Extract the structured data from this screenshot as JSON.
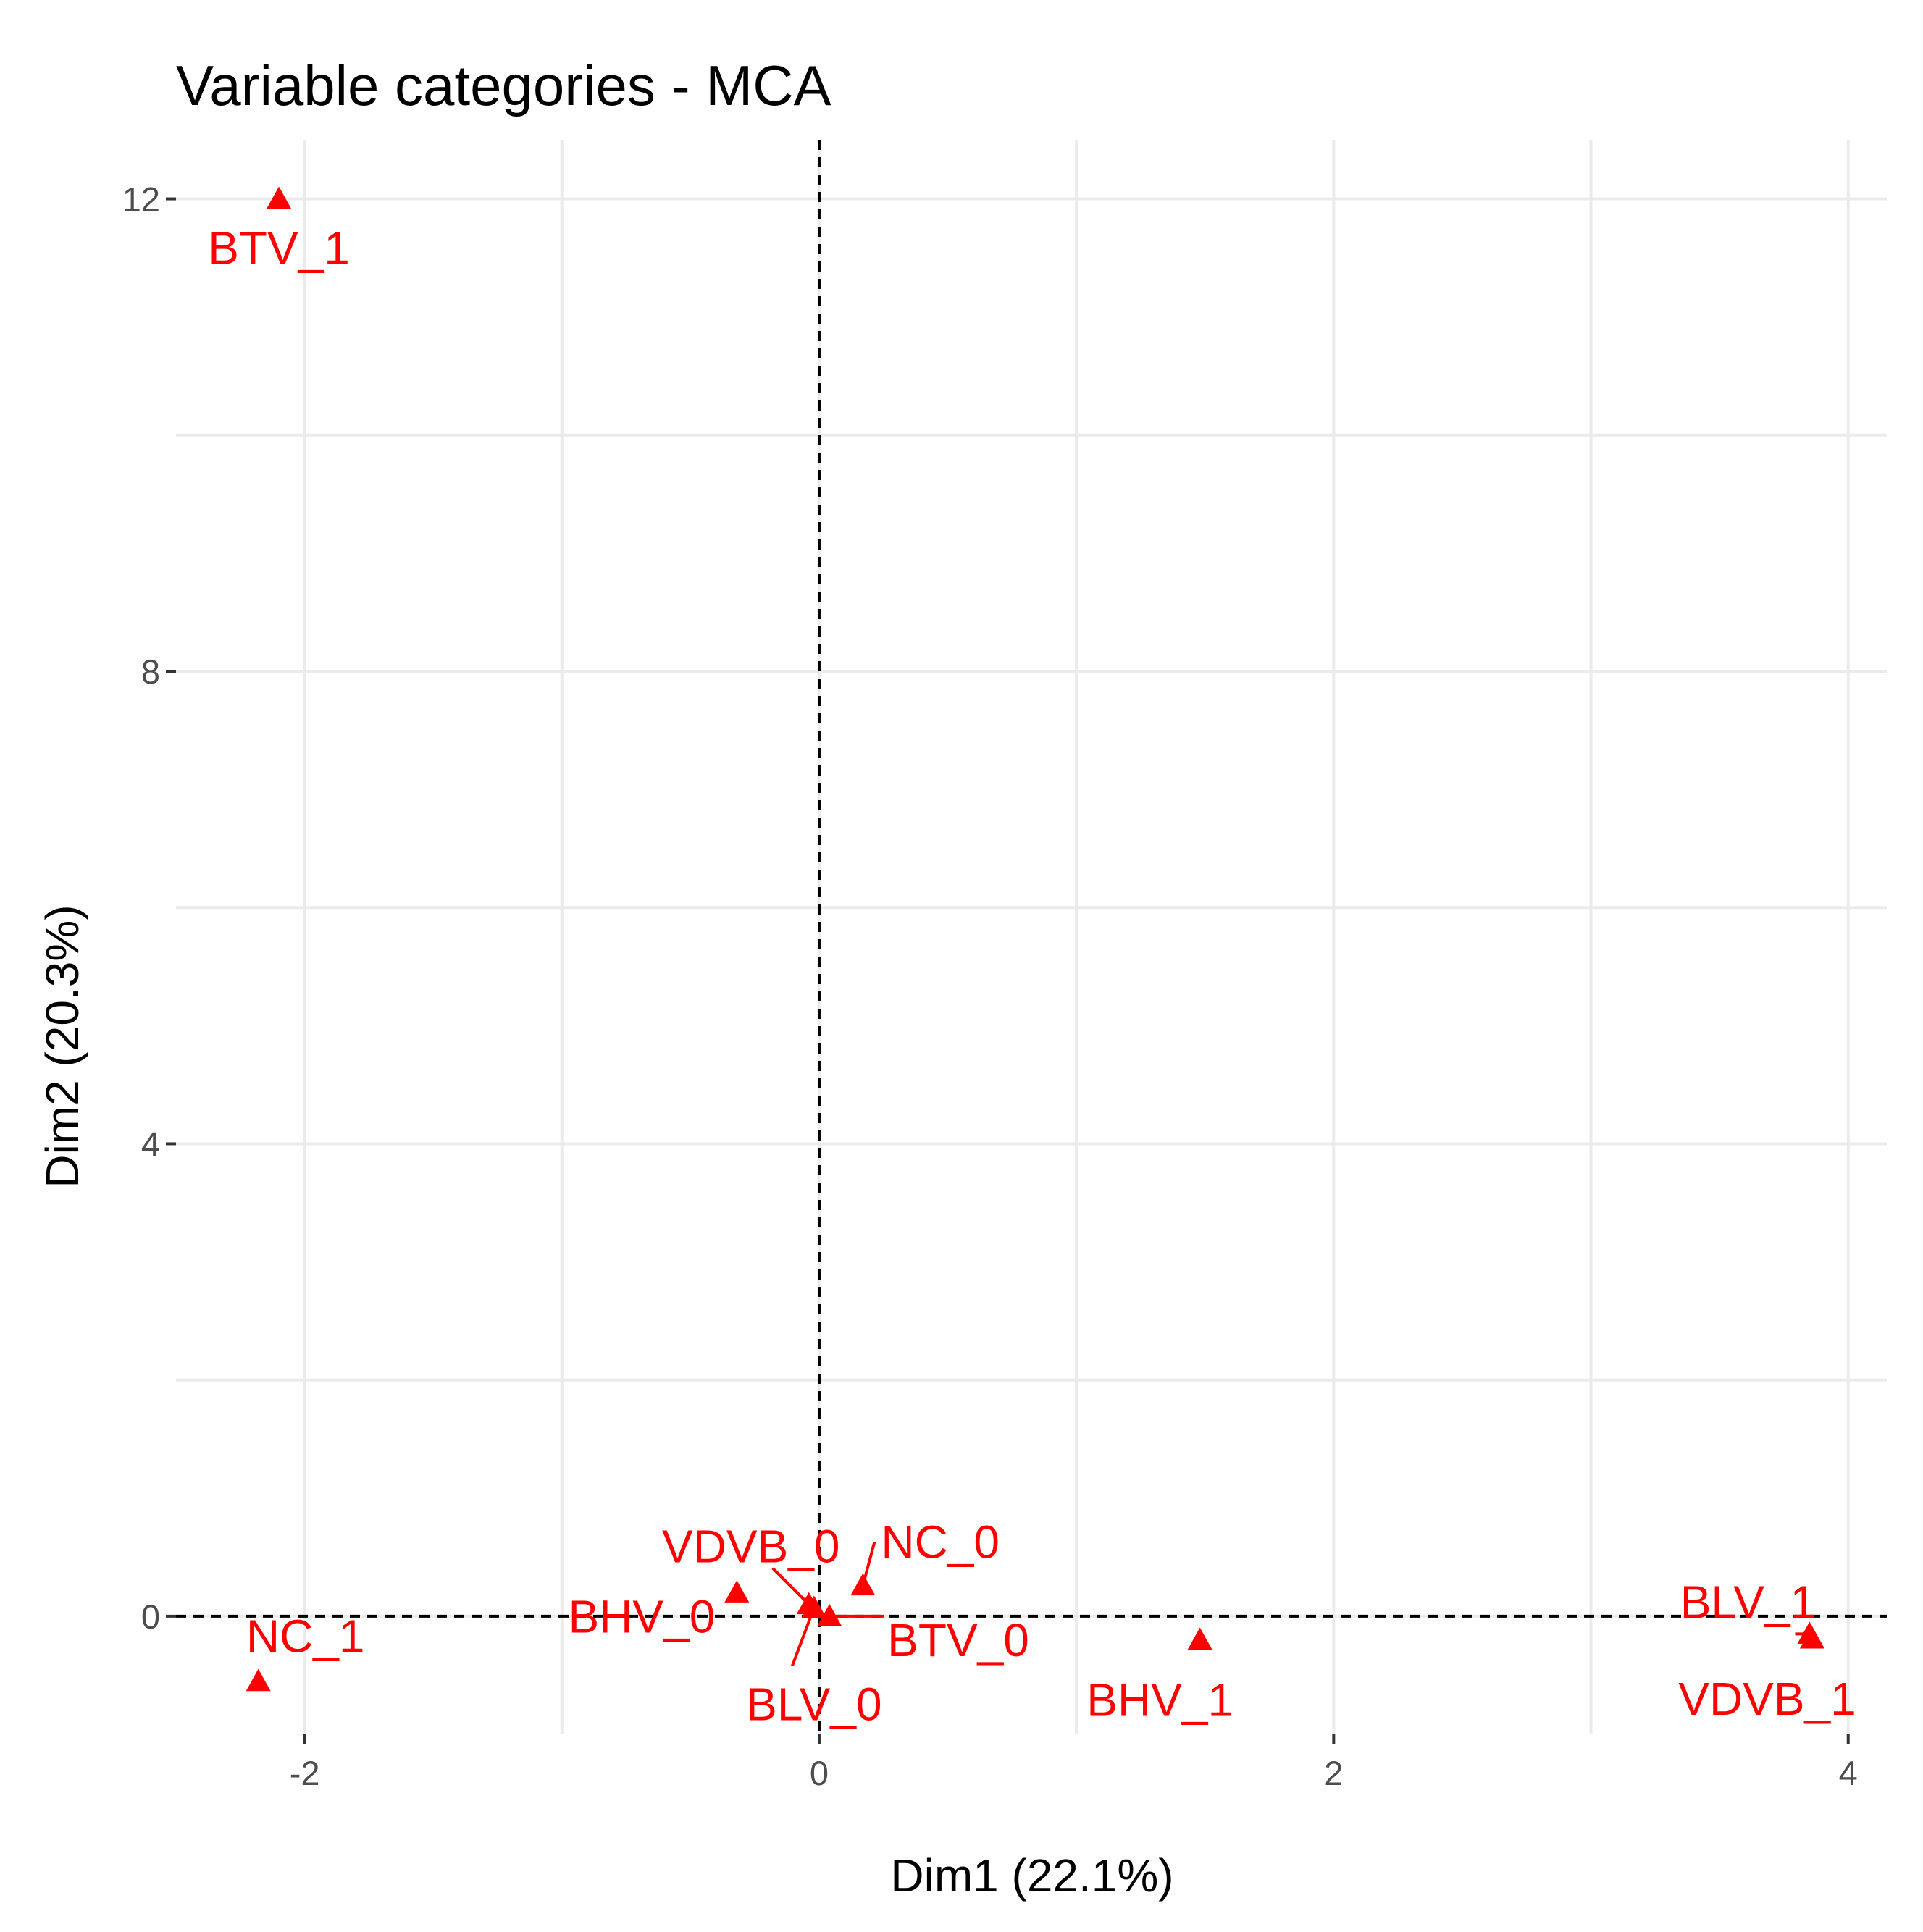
{
  "chart_data": {
    "type": "scatter",
    "title": "Variable categories - MCA",
    "xlabel": "Dim1 (22.1%)",
    "ylabel": "Dim2 (20.3%)",
    "xlim": [
      -2.5,
      4.15
    ],
    "ylim": [
      -1.0,
      12.5
    ],
    "x_ticks": [
      -2,
      0,
      2,
      4
    ],
    "y_ticks": [
      0,
      4,
      8,
      12
    ],
    "x_tick_labels": [
      "-2",
      "0",
      "2",
      "4"
    ],
    "y_tick_labels": [
      "0",
      "4",
      "8",
      "12"
    ],
    "grid": true,
    "reference_lines": {
      "x": 0,
      "y": 0
    },
    "marker": "triangle",
    "color": "#ff0000",
    "points": [
      {
        "label": "BTV_1",
        "x": -2.1,
        "y": 12.0
      },
      {
        "label": "NC_1",
        "x": -2.18,
        "y": -0.55
      },
      {
        "label": "BHV_0",
        "x": -0.32,
        "y": 0.2
      },
      {
        "label": "VDVB_0",
        "x": -0.04,
        "y": 0.1
      },
      {
        "label": "BLV_0",
        "x": -0.02,
        "y": 0.07
      },
      {
        "label": "BTV_0",
        "x": 0.04,
        "y": 0.0
      },
      {
        "label": "NC_0",
        "x": 0.17,
        "y": 0.26
      },
      {
        "label": "BHV_1",
        "x": 1.48,
        "y": -0.2
      },
      {
        "label": "BLV_1",
        "x": 3.85,
        "y": -0.15
      },
      {
        "label": "VDVB_1",
        "x": 3.86,
        "y": -0.19
      }
    ]
  }
}
